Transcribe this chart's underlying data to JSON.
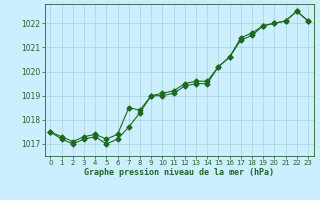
{
  "x": [
    0,
    1,
    2,
    3,
    4,
    5,
    6,
    7,
    8,
    9,
    10,
    11,
    12,
    13,
    14,
    15,
    16,
    17,
    18,
    19,
    20,
    21,
    22,
    23
  ],
  "y_jagged": [
    1017.5,
    1017.2,
    1017.0,
    1017.2,
    1017.3,
    1017.0,
    1017.2,
    1017.7,
    1018.3,
    1019.0,
    1019.0,
    1019.1,
    1019.4,
    1019.5,
    1019.5,
    1020.2,
    1020.6,
    1021.4,
    1021.6,
    1021.9,
    1022.0,
    1022.1,
    1022.5,
    1022.1
  ],
  "y_smooth": [
    1017.5,
    1017.3,
    1017.1,
    1017.3,
    1017.4,
    1017.2,
    1017.4,
    1018.5,
    1018.4,
    1019.0,
    1019.1,
    1019.2,
    1019.5,
    1019.6,
    1019.6,
    1020.2,
    1020.6,
    1021.3,
    1021.5,
    1021.9,
    1022.0,
    1022.1,
    1022.5,
    1022.1
  ],
  "line_color": "#1a6b1a",
  "background_color": "#cceeff",
  "grid_color": "#99cccc",
  "ylabel_ticks": [
    1017,
    1018,
    1019,
    1020,
    1021,
    1022
  ],
  "xlabel_ticks": [
    0,
    1,
    2,
    3,
    4,
    5,
    6,
    7,
    8,
    9,
    10,
    11,
    12,
    13,
    14,
    15,
    16,
    17,
    18,
    19,
    20,
    21,
    22,
    23
  ],
  "ylim": [
    1016.5,
    1022.8
  ],
  "xlim": [
    -0.5,
    23.5
  ],
  "xlabel": "Graphe pression niveau de la mer (hPa)",
  "marker_size": 2.5,
  "linewidth": 0.8,
  "tick_fontsize": 5.0,
  "xlabel_fontsize": 6.0
}
